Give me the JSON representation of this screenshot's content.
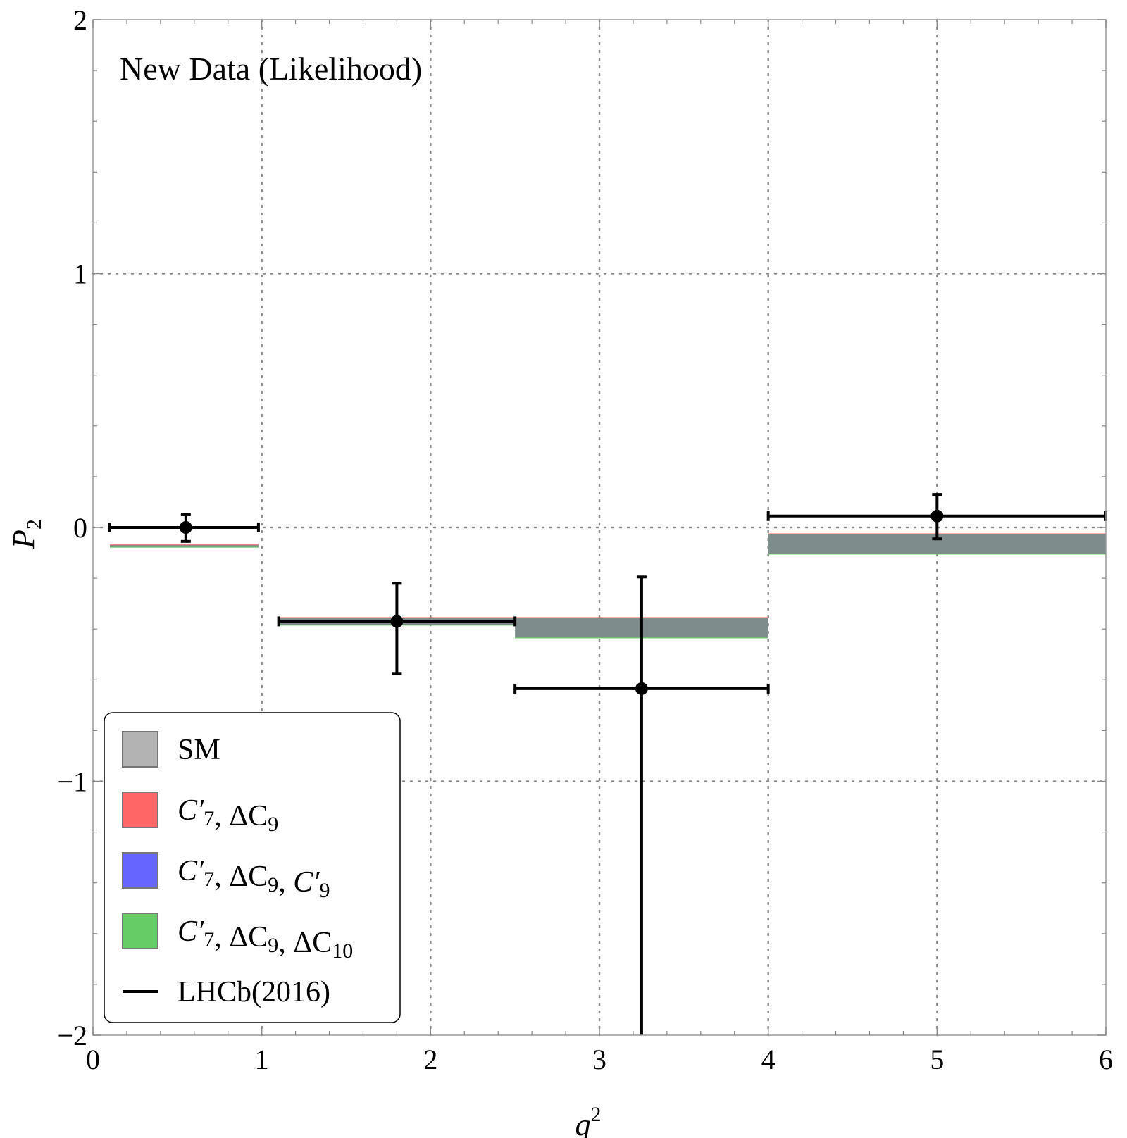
{
  "chart_data": {
    "type": "scatter",
    "title": "New Data (Likelihood)",
    "xlabel": "q",
    "xlabel_sup": "2",
    "ylabel": "P",
    "ylabel_sub": "2",
    "xlim": [
      0,
      6
    ],
    "ylim": [
      -2,
      2
    ],
    "xticks": [
      0,
      1,
      2,
      3,
      4,
      5,
      6
    ],
    "yticks": [
      -2,
      -1,
      0,
      1,
      2
    ],
    "xtick_labels": [
      "0",
      "1",
      "2",
      "3",
      "4",
      "5",
      "6"
    ],
    "ytick_labels": [
      "−2",
      "−1",
      "0",
      "1",
      "2"
    ],
    "grid": true,
    "colors": {
      "sm": "#b3b3b3",
      "c7_dc9": "#ff6666",
      "c7_dc9_c9": "#6666ff",
      "c7_dc9_dc10": "#66cc66",
      "overlap": "#7f8c8c",
      "data": "#000000"
    },
    "bands": [
      {
        "xmin": 0.1,
        "xmax": 0.98,
        "ymin": -0.078,
        "ymax": -0.068
      },
      {
        "xmin": 1.1,
        "xmax": 2.5,
        "ymin": -0.385,
        "ymax": -0.355
      },
      {
        "xmin": 2.5,
        "xmax": 4.0,
        "ymin": -0.435,
        "ymax": -0.355
      },
      {
        "xmin": 4.0,
        "xmax": 6.0,
        "ymin": -0.105,
        "ymax": -0.025
      }
    ],
    "series": [
      {
        "name": "LHCb(2016)",
        "points": [
          {
            "x": 0.55,
            "y": 0.0,
            "xlo": 0.1,
            "xhi": 0.98,
            "ylo": -0.055,
            "yhi": 0.05
          },
          {
            "x": 1.8,
            "y": -0.37,
            "xlo": 1.1,
            "xhi": 2.5,
            "ylo": -0.575,
            "yhi": -0.22
          },
          {
            "x": 3.25,
            "y": -0.635,
            "xlo": 2.5,
            "xhi": 4.0,
            "ylo": -2.0,
            "yhi": -0.195
          },
          {
            "x": 5.0,
            "y": 0.045,
            "xlo": 4.0,
            "xhi": 6.0,
            "ylo": -0.045,
            "yhi": 0.13
          }
        ]
      }
    ],
    "legend": {
      "placement": "bottom-left",
      "entries": [
        {
          "key": "sm",
          "type": "swatch",
          "color": "#b3b3b3",
          "parts": [
            {
              "t": "SM"
            }
          ]
        },
        {
          "key": "c7_dc9",
          "type": "swatch",
          "color": "#ff6666",
          "parts": [
            {
              "t": "C",
              "i": true
            },
            {
              "t": "′",
              "i": true
            },
            {
              "t": "7",
              "sub": true
            },
            {
              "t": ", ΔC"
            },
            {
              "t": "9",
              "sub": true
            }
          ]
        },
        {
          "key": "c7_dc9_c9",
          "type": "swatch",
          "color": "#6666ff",
          "parts": [
            {
              "t": "C",
              "i": true
            },
            {
              "t": "′",
              "i": true
            },
            {
              "t": "7",
              "sub": true
            },
            {
              "t": ", ΔC"
            },
            {
              "t": "9",
              "sub": true
            },
            {
              "t": ", "
            },
            {
              "t": "C",
              "i": true
            },
            {
              "t": "′",
              "i": true
            },
            {
              "t": "9",
              "sub": true
            }
          ]
        },
        {
          "key": "c7_dc9_dc10",
          "type": "swatch",
          "color": "#66cc66",
          "parts": [
            {
              "t": "C",
              "i": true
            },
            {
              "t": "′",
              "i": true
            },
            {
              "t": "7",
              "sub": true
            },
            {
              "t": ", ΔC"
            },
            {
              "t": "9",
              "sub": true
            },
            {
              "t": ", ΔC"
            },
            {
              "t": "10",
              "sub": true
            }
          ]
        },
        {
          "key": "lhcb",
          "type": "line",
          "color": "#000000",
          "parts": [
            {
              "t": "LHCb(2016)"
            }
          ]
        }
      ]
    }
  }
}
